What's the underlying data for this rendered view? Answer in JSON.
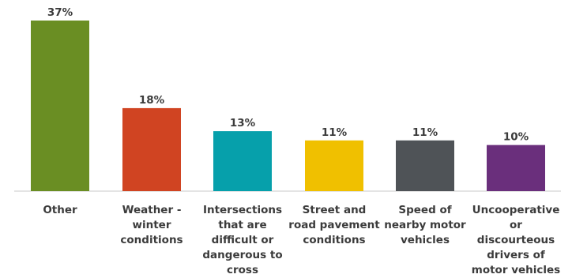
{
  "chart_data": {
    "type": "bar",
    "categories": [
      [
        "Other"
      ],
      [
        "Weather -",
        "winter",
        "conditions"
      ],
      [
        "Intersections",
        "that are",
        "difficult or",
        "dangerous to",
        "cross"
      ],
      [
        "Street and",
        "road pavement",
        "conditions"
      ],
      [
        "Speed of",
        "nearby motor",
        "vehicles"
      ],
      [
        "Uncooperative",
        "or",
        "discourteous",
        "drivers of",
        "motor vehicles"
      ]
    ],
    "values": [
      37,
      18,
      13,
      11,
      11,
      10
    ],
    "value_labels": [
      "37%",
      "18%",
      "13%",
      "11%",
      "11%",
      "10%"
    ],
    "colors": [
      "#6a8e23",
      "#d04422",
      "#06a0ab",
      "#f0c000",
      "#4f5357",
      "#6a2f7c"
    ],
    "ylim": [
      0,
      37
    ],
    "grid": false,
    "title": "",
    "xlabel": "",
    "ylabel": ""
  }
}
